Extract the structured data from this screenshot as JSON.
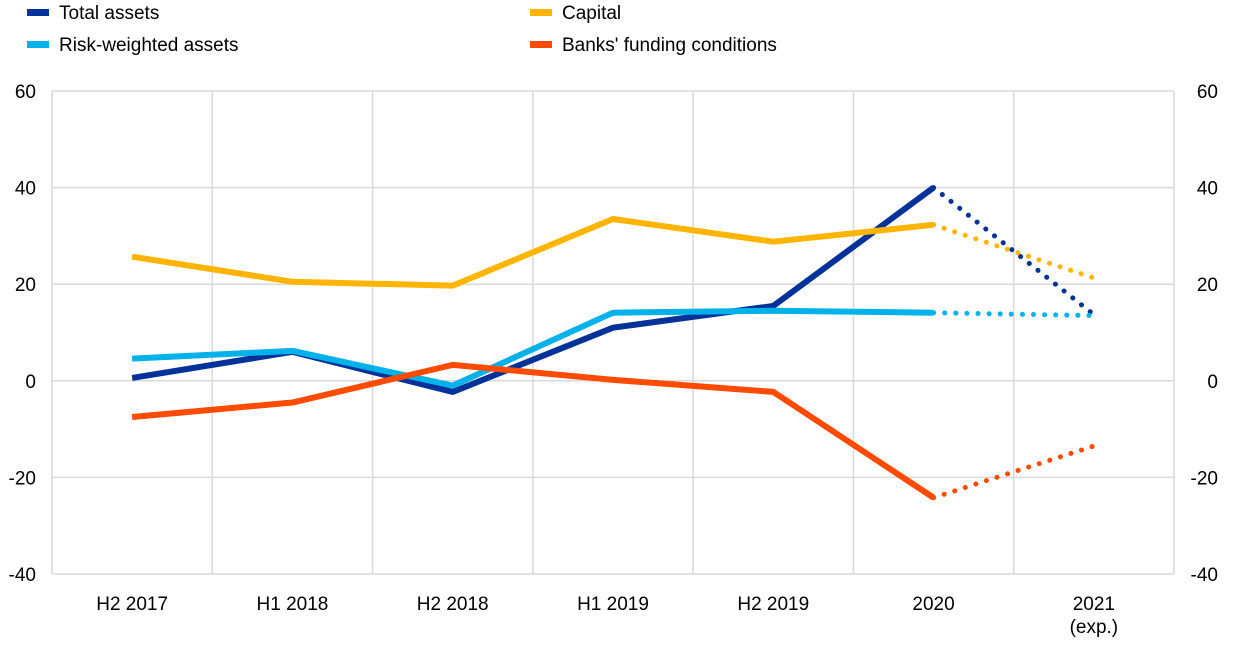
{
  "chart_data": {
    "type": "line",
    "title": "",
    "xlabel": "",
    "ylabel": "",
    "categories": [
      "H2 2017",
      "H1 2018",
      "H2 2018",
      "H1 2019",
      "H2 2019",
      "2020",
      "2021"
    ],
    "category_sublabels": [
      "",
      "",
      "",
      "",
      "",
      "",
      "(exp.)"
    ],
    "ylim": [
      -40,
      60
    ],
    "yticks": [
      -40,
      -20,
      0,
      20,
      40,
      60
    ],
    "grid": true,
    "legend_position": "top-left",
    "expected_from_index": 5,
    "series": [
      {
        "name": "Total assets",
        "color": "#003299",
        "values": [
          0.6,
          6.0,
          -2.3,
          11.0,
          15.5,
          40.0,
          13.7
        ]
      },
      {
        "name": "Capital",
        "color": "#FFB400",
        "values": [
          25.7,
          20.5,
          19.7,
          33.5,
          28.8,
          32.3,
          21.3
        ]
      },
      {
        "name": "Risk-weighted assets",
        "color": "#00B1EA",
        "values": [
          4.6,
          6.2,
          -1.0,
          14.1,
          14.5,
          14.1,
          13.5
        ]
      },
      {
        "name": "Banks' funding conditions",
        "color": "#FF4B00",
        "values": [
          -7.5,
          -4.5,
          3.3,
          0.2,
          -2.3,
          -24.2,
          -13.5
        ]
      }
    ]
  }
}
